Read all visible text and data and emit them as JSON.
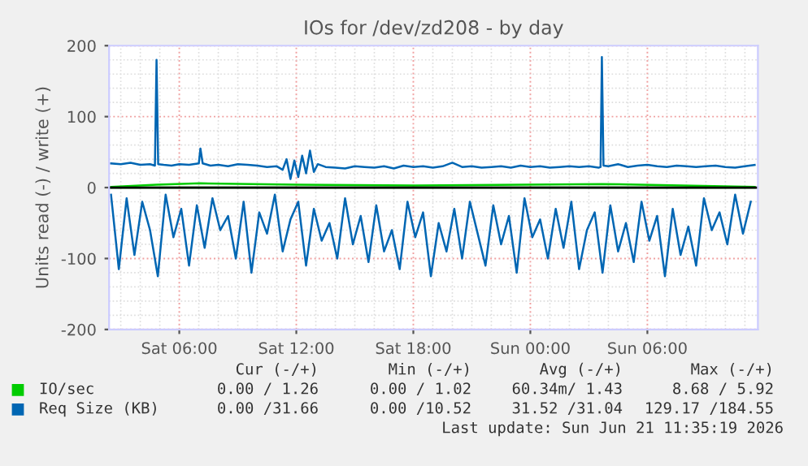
{
  "chart_data": {
    "type": "line",
    "title": "IOs for /dev/zd208 - by day",
    "ylabel": "Units read (-) / write (+)",
    "xlim": [
      "2026-06-20T02:24",
      "2026-06-21T11:40"
    ],
    "xticks": [
      {
        "value": "2026-06-20T06:00",
        "label": "Sat 06:00"
      },
      {
        "value": "2026-06-20T12:00",
        "label": "Sat 12:00"
      },
      {
        "value": "2026-06-20T18:00",
        "label": "Sat 18:00"
      },
      {
        "value": "2026-06-21T00:00",
        "label": "Sun 00:00"
      },
      {
        "value": "2026-06-21T06:00",
        "label": "Sun 06:00"
      }
    ],
    "ylim": [
      -200,
      200
    ],
    "yticks": [
      -200,
      -100,
      0,
      100,
      200
    ],
    "grid": true,
    "legend": "bottom",
    "ref_lines": [
      {
        "axis": "y",
        "value": 0,
        "color": "#000000"
      }
    ],
    "series": [
      {
        "name": "IO/sec",
        "color": "#00cc00",
        "x": [
          "2026-06-20T02:30",
          "2026-06-20T04:50",
          "2026-06-20T07:05",
          "2026-06-20T12:06",
          "2026-06-20T18:06",
          "2026-06-21T03:40",
          "2026-06-21T11:30"
        ],
        "values": [
          1,
          4,
          6,
          4,
          3,
          5,
          1
        ]
      },
      {
        "color": "#00cc00",
        "x": [
          "2026-06-20T02:30",
          "2026-06-21T11:30"
        ],
        "values": [
          0,
          0
        ]
      },
      {
        "name": "Req Size (KB)",
        "color": "#0066b3",
        "x": [
          "2026-06-20T02:30",
          "2026-06-20T03:00",
          "2026-06-20T03:30",
          "2026-06-20T04:00",
          "2026-06-20T04:30",
          "2026-06-20T04:45",
          "2026-06-20T04:50",
          "2026-06-20T04:55",
          "2026-06-20T05:12",
          "2026-06-20T05:36",
          "2026-06-20T06:00",
          "2026-06-20T06:30",
          "2026-06-20T07:00",
          "2026-06-20T07:05",
          "2026-06-20T07:12",
          "2026-06-20T07:36",
          "2026-06-20T08:00",
          "2026-06-20T08:30",
          "2026-06-20T09:00",
          "2026-06-20T09:30",
          "2026-06-20T10:00",
          "2026-06-20T10:30",
          "2026-06-20T11:00",
          "2026-06-20T11:18",
          "2026-06-20T11:30",
          "2026-06-20T11:42",
          "2026-06-20T11:54",
          "2026-06-20T12:06",
          "2026-06-20T12:18",
          "2026-06-20T12:30",
          "2026-06-20T12:42",
          "2026-06-20T12:54",
          "2026-06-20T13:06",
          "2026-06-20T13:30",
          "2026-06-20T14:00",
          "2026-06-20T14:30",
          "2026-06-20T15:00",
          "2026-06-20T15:30",
          "2026-06-20T16:00",
          "2026-06-20T16:30",
          "2026-06-20T17:00",
          "2026-06-20T17:30",
          "2026-06-20T18:00",
          "2026-06-20T18:30",
          "2026-06-20T19:00",
          "2026-06-20T19:30",
          "2026-06-20T20:00",
          "2026-06-20T20:30",
          "2026-06-20T21:00",
          "2026-06-20T21:30",
          "2026-06-20T22:00",
          "2026-06-20T22:30",
          "2026-06-20T23:00",
          "2026-06-20T23:30",
          "2026-06-21T00:00",
          "2026-06-21T00:30",
          "2026-06-21T01:00",
          "2026-06-21T01:30",
          "2026-06-21T02:00",
          "2026-06-21T02:30",
          "2026-06-21T03:00",
          "2026-06-21T03:30",
          "2026-06-21T03:36",
          "2026-06-21T03:40",
          "2026-06-21T03:45",
          "2026-06-21T04:00",
          "2026-06-21T04:30",
          "2026-06-21T05:00",
          "2026-06-21T05:30",
          "2026-06-21T06:00",
          "2026-06-21T06:30",
          "2026-06-21T07:00",
          "2026-06-21T07:30",
          "2026-06-21T08:00",
          "2026-06-21T08:30",
          "2026-06-21T09:00",
          "2026-06-21T09:30",
          "2026-06-21T10:00",
          "2026-06-21T10:30",
          "2026-06-21T11:00",
          "2026-06-21T11:30"
        ],
        "values": [
          34,
          33,
          35,
          32,
          33,
          31,
          180,
          33,
          32,
          31,
          33,
          32,
          34,
          55,
          34,
          31,
          32,
          30,
          33,
          32,
          31,
          29,
          30,
          25,
          40,
          12,
          38,
          15,
          45,
          20,
          52,
          22,
          33,
          29,
          28,
          27,
          30,
          29,
          28,
          30,
          27,
          31,
          29,
          30,
          28,
          30,
          35,
          29,
          30,
          28,
          29,
          30,
          28,
          31,
          29,
          30,
          28,
          29,
          30,
          29,
          30,
          28,
          29,
          184,
          31,
          30,
          33,
          29,
          31,
          32,
          30,
          29,
          31,
          30,
          29,
          30,
          31,
          29,
          28,
          30,
          32
        ]
      },
      {
        "color": "#0066b3",
        "x": [
          "2026-06-20T02:30",
          "2026-06-20T02:54",
          "2026-06-20T03:18",
          "2026-06-20T03:42",
          "2026-06-20T04:06",
          "2026-06-20T04:30",
          "2026-06-20T04:54",
          "2026-06-20T05:18",
          "2026-06-20T05:42",
          "2026-06-20T06:06",
          "2026-06-20T06:30",
          "2026-06-20T06:54",
          "2026-06-20T07:18",
          "2026-06-20T07:42",
          "2026-06-20T08:06",
          "2026-06-20T08:30",
          "2026-06-20T08:54",
          "2026-06-20T09:18",
          "2026-06-20T09:42",
          "2026-06-20T10:06",
          "2026-06-20T10:30",
          "2026-06-20T10:54",
          "2026-06-20T11:18",
          "2026-06-20T11:42",
          "2026-06-20T12:06",
          "2026-06-20T12:30",
          "2026-06-20T12:54",
          "2026-06-20T13:18",
          "2026-06-20T13:42",
          "2026-06-20T14:06",
          "2026-06-20T14:30",
          "2026-06-20T14:54",
          "2026-06-20T15:18",
          "2026-06-20T15:42",
          "2026-06-20T16:06",
          "2026-06-20T16:30",
          "2026-06-20T16:54",
          "2026-06-20T17:18",
          "2026-06-20T17:42",
          "2026-06-20T18:06",
          "2026-06-20T18:30",
          "2026-06-20T18:54",
          "2026-06-20T19:18",
          "2026-06-20T19:42",
          "2026-06-20T20:06",
          "2026-06-20T20:30",
          "2026-06-20T20:54",
          "2026-06-20T21:18",
          "2026-06-20T21:42",
          "2026-06-20T22:06",
          "2026-06-20T22:30",
          "2026-06-20T22:54",
          "2026-06-20T23:18",
          "2026-06-20T23:42",
          "2026-06-21T00:06",
          "2026-06-21T00:30",
          "2026-06-21T00:54",
          "2026-06-21T01:18",
          "2026-06-21T01:42",
          "2026-06-21T02:06",
          "2026-06-21T02:30",
          "2026-06-21T02:54",
          "2026-06-21T03:18",
          "2026-06-21T03:42",
          "2026-06-21T04:06",
          "2026-06-21T04:30",
          "2026-06-21T04:54",
          "2026-06-21T05:18",
          "2026-06-21T05:42",
          "2026-06-21T06:06",
          "2026-06-21T06:30",
          "2026-06-21T06:54",
          "2026-06-21T07:18",
          "2026-06-21T07:42",
          "2026-06-21T08:06",
          "2026-06-21T08:30",
          "2026-06-21T08:54",
          "2026-06-21T09:18",
          "2026-06-21T09:42",
          "2026-06-21T10:06",
          "2026-06-21T10:30",
          "2026-06-21T10:54",
          "2026-06-21T11:18"
        ],
        "values": [
          -10,
          -115,
          -15,
          -95,
          -20,
          -60,
          -125,
          -10,
          -70,
          -30,
          -110,
          -25,
          -85,
          -15,
          -60,
          -40,
          -100,
          -20,
          -120,
          -35,
          -65,
          -10,
          -90,
          -45,
          -20,
          -110,
          -30,
          -75,
          -50,
          -100,
          -15,
          -80,
          -40,
          -105,
          -25,
          -90,
          -60,
          -115,
          -20,
          -70,
          -35,
          -125,
          -50,
          -90,
          -30,
          -100,
          -20,
          -65,
          -110,
          -25,
          -80,
          -40,
          -120,
          -15,
          -70,
          -45,
          -100,
          -30,
          -85,
          -20,
          -115,
          -60,
          -35,
          -120,
          -25,
          -90,
          -50,
          -105,
          -20,
          -75,
          -40,
          -125,
          -30,
          -95,
          -55,
          -110,
          -15,
          -60,
          -35,
          -80,
          -10,
          -65,
          -20
        ]
      }
    ],
    "annotations": [
      "Cur (-/+)",
      "Min (-/+)",
      "Avg (-/+)",
      "Max (-/+)",
      "0.00 / 1.26",
      "0.00 / 1.02",
      "60.34m/ 1.43",
      "8.68 / 5.92",
      "0.00 /31.66",
      "0.00 /10.52",
      "31.52 /31.04",
      "129.17 /184.55",
      "Last update: Sun Jun 21 11:35:19 2026"
    ]
  }
}
